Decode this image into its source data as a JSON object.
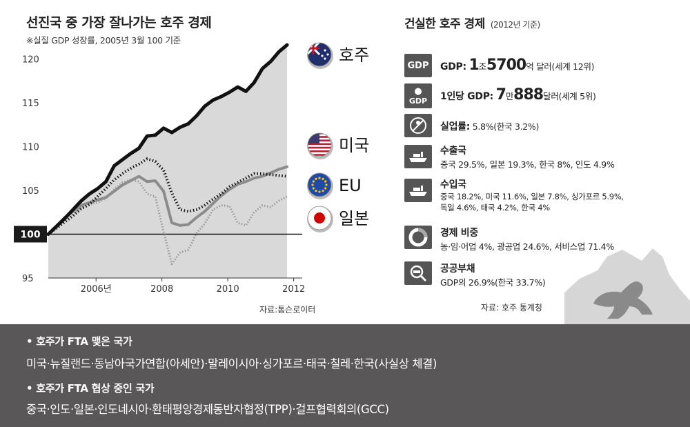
{
  "chart_data": {
    "type": "line",
    "title": "선진국 중 가장 잘나가는 호주 경제",
    "subtitle": "※실질 GDP 성장률, 2005년 3월 100 기준",
    "source": "자료:톰슨로이터",
    "ylim": [
      95,
      122
    ],
    "xlim": [
      2004.75,
      2012.25
    ],
    "y_ticks": [
      "95",
      "100",
      "105",
      "110",
      "115",
      "120"
    ],
    "x_ticks": [
      {
        "label": "2006년",
        "x": 2006.2
      },
      {
        "label": "2008",
        "x": 2008.2
      },
      {
        "label": "2010",
        "x": 2010.2
      },
      {
        "label": "2012",
        "x": 2012.2
      }
    ],
    "baseline_label": "100",
    "x": [
      2004.75,
      2005.0,
      2005.25,
      2005.5,
      2005.75,
      2006.0,
      2006.25,
      2006.5,
      2006.75,
      2007.0,
      2007.25,
      2007.5,
      2007.75,
      2008.0,
      2008.25,
      2008.5,
      2008.75,
      2009.0,
      2009.25,
      2009.5,
      2009.75,
      2010.0,
      2010.25,
      2010.5,
      2010.75,
      2011.0,
      2011.25,
      2011.5,
      2011.75,
      2012.0
    ],
    "series": [
      {
        "name": "호주",
        "color": "#111111",
        "style": "solid-thick",
        "values": [
          100.0,
          100.9,
          101.8,
          102.8,
          103.8,
          104.6,
          105.2,
          106.0,
          107.8,
          108.5,
          109.2,
          109.8,
          111.2,
          111.3,
          112.1,
          111.6,
          112.2,
          112.6,
          113.5,
          114.6,
          115.3,
          115.7,
          116.2,
          116.8,
          116.3,
          117.3,
          118.9,
          119.7,
          120.8,
          121.6
        ]
      },
      {
        "name": "미국",
        "color": "#8c8c8c",
        "style": "solid",
        "values": [
          100.0,
          100.9,
          101.9,
          102.6,
          103.3,
          103.6,
          103.9,
          104.2,
          104.9,
          105.6,
          106.1,
          106.6,
          106.0,
          106.1,
          104.9,
          101.3,
          101.0,
          101.1,
          101.9,
          102.6,
          103.5,
          104.4,
          105.1,
          105.7,
          106.0,
          106.4,
          106.6,
          107.0,
          107.4,
          107.7
        ]
      },
      {
        "name": "EU",
        "color": "#111111",
        "style": "dotted-thick",
        "values": [
          100.0,
          100.7,
          101.4,
          102.1,
          102.9,
          103.4,
          104.3,
          105.2,
          106.2,
          106.9,
          107.5,
          108.0,
          108.6,
          108.3,
          107.3,
          104.7,
          102.8,
          102.6,
          102.8,
          103.3,
          104.0,
          104.6,
          105.4,
          105.9,
          106.4,
          106.9,
          106.9,
          106.8,
          106.7,
          106.6
        ]
      },
      {
        "name": "일본",
        "color": "#9a9a9a",
        "style": "dotted",
        "values": [
          100.0,
          100.8,
          101.6,
          102.4,
          103.0,
          103.4,
          103.6,
          104.1,
          105.1,
          105.9,
          106.2,
          106.0,
          104.6,
          104.3,
          100.3,
          96.6,
          97.9,
          98.2,
          100.1,
          101.2,
          102.8,
          103.3,
          103.2,
          101.3,
          101.0,
          102.5,
          103.3,
          103.1,
          103.8,
          104.3
        ]
      }
    ]
  },
  "legend": [
    {
      "name": "호주",
      "flag": "flag-australia-icon"
    },
    {
      "name": "미국",
      "flag": "flag-usa-icon"
    },
    {
      "name": "EU",
      "flag": "flag-eu-icon"
    },
    {
      "name": "일본",
      "flag": "flag-japan-icon"
    }
  ],
  "panel": {
    "title": "건실한 호주 경제",
    "title_note": "(2012년 기준)",
    "gdp": {
      "icon": "gdp-icon",
      "icon_text": "GDP",
      "prefix": "GDP:",
      "n1": "1",
      "u1": "조",
      "n2": "5700",
      "u2": "억 달러",
      "note": "(세계 12위)"
    },
    "gdp_per_capita": {
      "icon": "person-gdp-icon",
      "icon_text": "GDP",
      "prefix": "1인당 GDP:",
      "n1": "7",
      "u1": "만",
      "n2": "888",
      "u2": "달러",
      "note": "(세계 5위)"
    },
    "unemployment": {
      "icon": "no-work-icon",
      "head": "실업률:",
      "value": "5.8%(한국  3.2%)"
    },
    "export": {
      "icon": "ship-icon",
      "head": "수출국",
      "line1": "중국 29.5%, 일본 19.3%, 한국 8%, 인도 4.9%"
    },
    "import": {
      "icon": "ship-icon",
      "head": "수입국",
      "line1": "중국 18.2%, 미국 11.6%, 일본 7.8%, 싱가포르 5.9%,",
      "line2": "독일 4.6%, 태국 4.2%, 한국 4%"
    },
    "economy_share": {
      "icon": "pie-chart-icon",
      "head": "경제 비중",
      "line1": "농·임·어업 4%, 광공업 24.6%, 서비스업 71.4%"
    },
    "public_debt": {
      "icon": "magnifier-icon",
      "head": "공공부채",
      "line1": "GDP의 26.9%(한국 33.7%)"
    },
    "source": "자료: 호주 통계청"
  },
  "fta": {
    "signed_heading": "• 호주가 FTA 맺은 국가",
    "signed_list": "미국·뉴질랜드·동남아국가연합(아세안)·말레이시아·싱가포르·태국·칠레·한국(사실상 체결)",
    "negotiating_heading": "• 호주가 FTA 협상 중인 국가",
    "negotiating_list": "중국·인도·일본·인도네시아·환태평양경제동반자협정(TPP)·걸프협력회의(GCC)"
  },
  "colors": {
    "band": "#595757",
    "area": "#d9d9d9",
    "icon_bg": "#555555",
    "map": "#d6d6d6"
  }
}
